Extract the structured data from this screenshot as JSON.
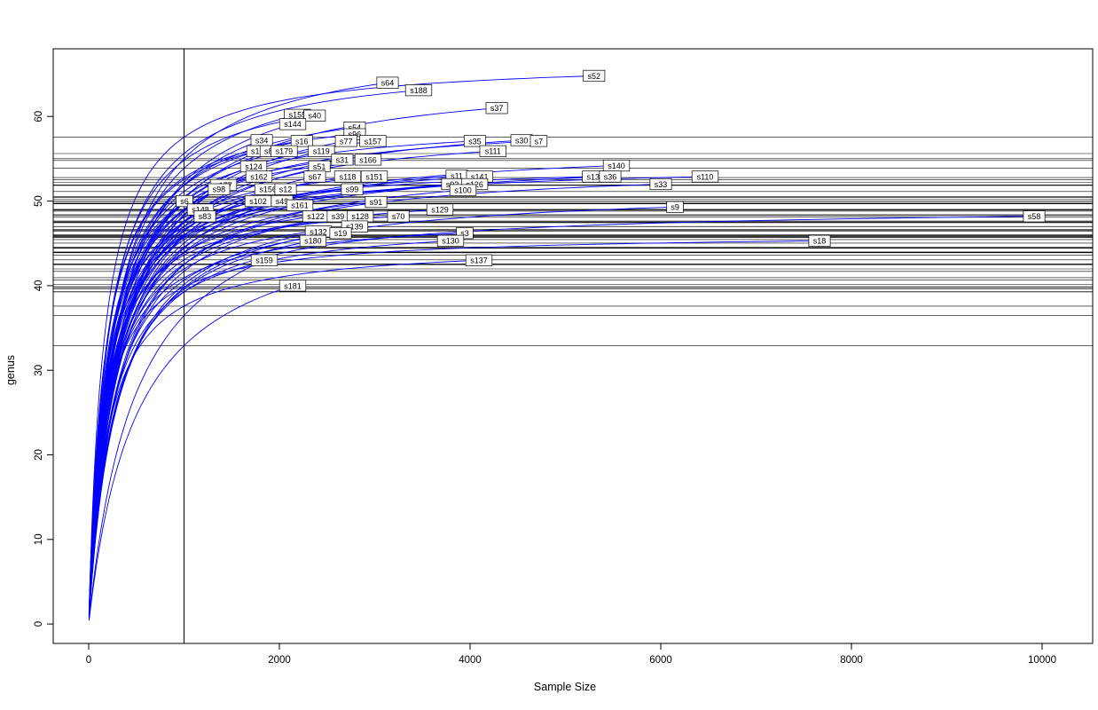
{
  "figure": {
    "xlabel": "Sample Size",
    "ylabel": "genus"
  },
  "chart_data": {
    "type": "line",
    "title": "",
    "xlabel": "Sample Size",
    "ylabel": "genus",
    "xlim": [
      -372,
      10530
    ],
    "ylim": [
      -2.3,
      68
    ],
    "x_ticks": [
      0,
      2000,
      4000,
      6000,
      8000,
      10000
    ],
    "y_ticks": [
      0,
      10,
      20,
      30,
      40,
      50,
      60
    ],
    "grid": false,
    "legend": "none",
    "curve_color": "#0000ff",
    "line_color": "#000000",
    "vline_x": 1000,
    "hline_rule": "one horizontal line per sample at its rarefied richness (curve value at vline_x)",
    "series": [
      {
        "name": "s52",
        "end_x": 5300,
        "end_y": 64.8
      },
      {
        "name": "s64",
        "end_x": 3135,
        "end_y": 64.0
      },
      {
        "name": "s188",
        "end_x": 3460,
        "end_y": 63.1
      },
      {
        "name": "s37",
        "end_x": 4280,
        "end_y": 61.0
      },
      {
        "name": "s155",
        "end_x": 2190,
        "end_y": 60.2
      },
      {
        "name": "s40",
        "end_x": 2370,
        "end_y": 60.1
      },
      {
        "name": "s144",
        "end_x": 2140,
        "end_y": 59.1
      },
      {
        "name": "s54",
        "end_x": 2790,
        "end_y": 58.7
      },
      {
        "name": "s96",
        "end_x": 2790,
        "end_y": 57.9
      },
      {
        "name": "s34",
        "end_x": 1815,
        "end_y": 57.2
      },
      {
        "name": "s16",
        "end_x": 2235,
        "end_y": 57.1
      },
      {
        "name": "s77",
        "end_x": 2700,
        "end_y": 57.1
      },
      {
        "name": "s157",
        "end_x": 2980,
        "end_y": 57.1
      },
      {
        "name": "s35",
        "end_x": 4050,
        "end_y": 57.1
      },
      {
        "name": "s30",
        "end_x": 4540,
        "end_y": 57.2
      },
      {
        "name": "s7",
        "end_x": 4720,
        "end_y": 57.1
      },
      {
        "name": "s15",
        "end_x": 1770,
        "end_y": 55.9
      },
      {
        "name": "s85",
        "end_x": 1910,
        "end_y": 55.9
      },
      {
        "name": "s179",
        "end_x": 2050,
        "end_y": 55.9
      },
      {
        "name": "s119",
        "end_x": 2440,
        "end_y": 55.9
      },
      {
        "name": "s111",
        "end_x": 4240,
        "end_y": 55.9
      },
      {
        "name": "s31",
        "end_x": 2660,
        "end_y": 54.9
      },
      {
        "name": "s166",
        "end_x": 2930,
        "end_y": 54.9
      },
      {
        "name": "s124",
        "end_x": 1730,
        "end_y": 54.1
      },
      {
        "name": "s51",
        "end_x": 2420,
        "end_y": 54.1
      },
      {
        "name": "s140",
        "end_x": 5535,
        "end_y": 54.2
      },
      {
        "name": "s162",
        "end_x": 1786,
        "end_y": 52.9
      },
      {
        "name": "s67",
        "end_x": 2372,
        "end_y": 52.9
      },
      {
        "name": "s118",
        "end_x": 2716,
        "end_y": 52.9
      },
      {
        "name": "s151",
        "end_x": 2995,
        "end_y": 52.9
      },
      {
        "name": "s11",
        "end_x": 3860,
        "end_y": 53.0
      },
      {
        "name": "s141",
        "end_x": 4100,
        "end_y": 52.9
      },
      {
        "name": "s13",
        "end_x": 5290,
        "end_y": 52.9
      },
      {
        "name": "s36",
        "end_x": 5470,
        "end_y": 52.9
      },
      {
        "name": "s110",
        "end_x": 6465,
        "end_y": 52.9
      },
      {
        "name": "s177",
        "end_x": 1414,
        "end_y": 51.9
      },
      {
        "name": "s92",
        "end_x": 3814,
        "end_y": 52.0
      },
      {
        "name": "s126",
        "end_x": 4047,
        "end_y": 52.0
      },
      {
        "name": "s33",
        "end_x": 6000,
        "end_y": 52.0
      },
      {
        "name": "s98",
        "end_x": 1367,
        "end_y": 51.4
      },
      {
        "name": "s156",
        "end_x": 1880,
        "end_y": 51.4
      },
      {
        "name": "s12",
        "end_x": 2065,
        "end_y": 51.4
      },
      {
        "name": "s99",
        "end_x": 2763,
        "end_y": 51.4
      },
      {
        "name": "s100",
        "end_x": 3926,
        "end_y": 51.3
      },
      {
        "name": "s6",
        "end_x": 1005,
        "end_y": 50.0
      },
      {
        "name": "s102",
        "end_x": 1777,
        "end_y": 50.0
      },
      {
        "name": "s49",
        "end_x": 2028,
        "end_y": 50.0
      },
      {
        "name": "s91",
        "end_x": 3014,
        "end_y": 49.9
      },
      {
        "name": "s161",
        "end_x": 2214,
        "end_y": 49.5
      },
      {
        "name": "s148",
        "end_x": 1172,
        "end_y": 49.0
      },
      {
        "name": "s129",
        "end_x": 3684,
        "end_y": 49.0
      },
      {
        "name": "s9",
        "end_x": 6150,
        "end_y": 49.3
      },
      {
        "name": "s83",
        "end_x": 1219,
        "end_y": 48.2
      },
      {
        "name": "s122",
        "end_x": 2381,
        "end_y": 48.2
      },
      {
        "name": "s39",
        "end_x": 2614,
        "end_y": 48.2
      },
      {
        "name": "s128",
        "end_x": 2847,
        "end_y": 48.2
      },
      {
        "name": "s70",
        "end_x": 3247,
        "end_y": 48.2
      },
      {
        "name": "s58",
        "end_x": 9916,
        "end_y": 48.2
      },
      {
        "name": "s139",
        "end_x": 2790,
        "end_y": 47.0
      },
      {
        "name": "s132",
        "end_x": 2409,
        "end_y": 46.4
      },
      {
        "name": "s19",
        "end_x": 2642,
        "end_y": 46.2
      },
      {
        "name": "s3",
        "end_x": 3944,
        "end_y": 46.2
      },
      {
        "name": "s180",
        "end_x": 2353,
        "end_y": 45.3
      },
      {
        "name": "s130",
        "end_x": 3795,
        "end_y": 45.3
      },
      {
        "name": "s18",
        "end_x": 7665,
        "end_y": 45.3
      },
      {
        "name": "s159",
        "end_x": 1842,
        "end_y": 43.0
      },
      {
        "name": "s137",
        "end_x": 4093,
        "end_y": 43.0
      },
      {
        "name": "s181",
        "end_x": 2140,
        "end_y": 40.0
      }
    ]
  }
}
